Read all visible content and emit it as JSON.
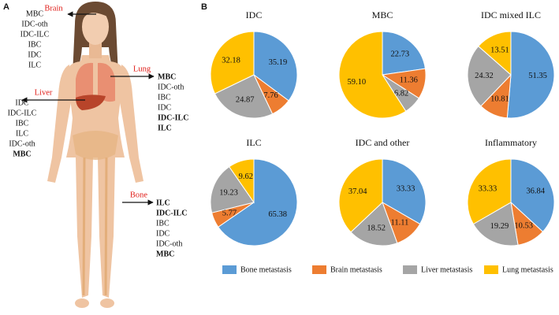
{
  "panel_a": {
    "label": "A",
    "sites": [
      {
        "name": "Brain",
        "items": [
          {
            "text": "MBC",
            "bold": false
          },
          {
            "text": "IDC-oth",
            "bold": false
          },
          {
            "text": "IDC-ILC",
            "bold": false
          },
          {
            "text": "IBC",
            "bold": false
          },
          {
            "text": "IDC",
            "bold": false
          },
          {
            "text": "ILC",
            "bold": false
          }
        ]
      },
      {
        "name": "Lung",
        "items": [
          {
            "text": "MBC",
            "bold": true
          },
          {
            "text": "IDC-oth",
            "bold": false
          },
          {
            "text": "IBC",
            "bold": false
          },
          {
            "text": "IDC",
            "bold": false
          },
          {
            "text": "IDC-ILC",
            "bold": true
          },
          {
            "text": "ILC",
            "bold": true
          }
        ]
      },
      {
        "name": "Liver",
        "items": [
          {
            "text": "IDC",
            "bold": false
          },
          {
            "text": "IDC-ILC",
            "bold": false
          },
          {
            "text": "IBC",
            "bold": false
          },
          {
            "text": "ILC",
            "bold": false
          },
          {
            "text": "IDC-oth",
            "bold": false
          },
          {
            "text": "MBC",
            "bold": true
          }
        ]
      },
      {
        "name": "Bone",
        "items": [
          {
            "text": "ILC",
            "bold": true
          },
          {
            "text": "IDC-ILC",
            "bold": true
          },
          {
            "text": "IBC",
            "bold": false
          },
          {
            "text": "IDC",
            "bold": false
          },
          {
            "text": "IDC-oth",
            "bold": false
          },
          {
            "text": "MBC",
            "bold": true
          }
        ]
      }
    ]
  },
  "panel_b_label": "B",
  "legend": {
    "categories": [
      "Bone metastasis",
      "Brain metastasis",
      "Liver metastasis",
      "Lung metastasis"
    ],
    "colors": [
      "#5b9bd5",
      "#ed7d31",
      "#a5a5a5",
      "#ffc000"
    ]
  },
  "chart_data": [
    {
      "type": "pie",
      "title": "IDC",
      "values": [
        35.19,
        7.76,
        24.87,
        32.18
      ],
      "value_labels": [
        "35.19",
        "7.76",
        "24.87",
        "32.18"
      ]
    },
    {
      "type": "pie",
      "title": "MBC",
      "values": [
        22.73,
        11.36,
        6.82,
        59.1
      ],
      "value_labels": [
        "22.73",
        "11.36",
        "6.82",
        "59.10"
      ]
    },
    {
      "type": "pie",
      "title": "IDC mixed ILC",
      "values": [
        51.35,
        10.81,
        24.32,
        13.51
      ],
      "value_labels": [
        "51.35",
        "10.81",
        "24.32",
        "13.51"
      ]
    },
    {
      "type": "pie",
      "title": "ILC",
      "values": [
        65.38,
        5.77,
        19.23,
        9.62
      ],
      "value_labels": [
        "65.38",
        "5.77",
        "19.23",
        "9.62"
      ]
    },
    {
      "type": "pie",
      "title": "IDC and other",
      "values": [
        33.33,
        11.11,
        18.52,
        37.04
      ],
      "value_labels": [
        "33.33",
        "11.11",
        "18.52",
        "37.04"
      ]
    },
    {
      "type": "pie",
      "title": "Inflammatory",
      "values": [
        36.84,
        10.53,
        19.29,
        33.33
      ],
      "value_labels": [
        "36.84",
        "10.53",
        "19.29",
        "33.33"
      ]
    }
  ]
}
